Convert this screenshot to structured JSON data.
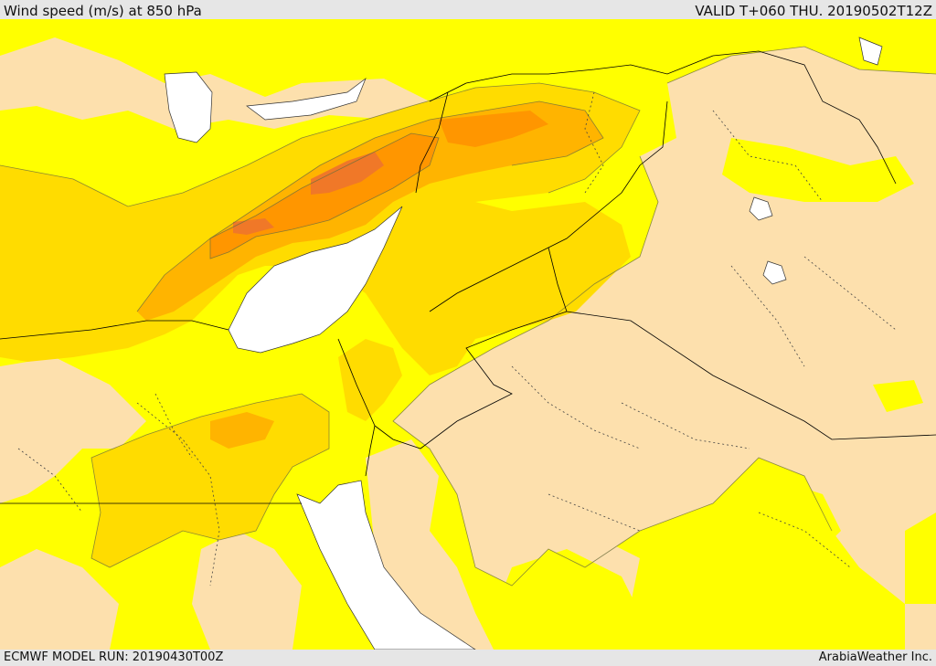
{
  "header": {
    "title": "Wind speed (m/s) at 850 hPa",
    "valid": "VALID T+060 THU. 20190502T12Z"
  },
  "footer": {
    "model_run": "ECMWF MODEL RUN: 20190430T00Z",
    "credit": "ArabiaWeather Inc."
  },
  "palette": {
    "water": "#ffffff",
    "band_low": "#fde0ad",
    "band_1": "#ffff00",
    "band_2": "#ffdc00",
    "band_3": "#ffb400",
    "band_4": "#ff9600",
    "band_5": "#f07828",
    "contour": "#6e6e3c",
    "border": "#000000",
    "admin": "#444444"
  }
}
